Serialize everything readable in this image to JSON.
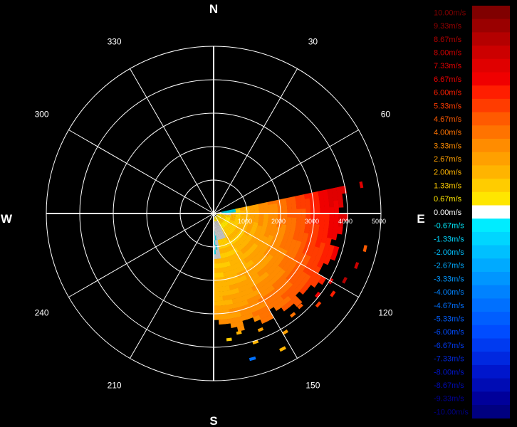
{
  "chart_data": {
    "type": "polar-radar",
    "cardinals": {
      "north": "N",
      "east": "E",
      "south": "S",
      "west": "W"
    },
    "bearing_labels": [
      {
        "deg": 30,
        "text": "30"
      },
      {
        "deg": 60,
        "text": "60"
      },
      {
        "deg": 120,
        "text": "120"
      },
      {
        "deg": 150,
        "text": "150"
      },
      {
        "deg": 210,
        "text": "210"
      },
      {
        "deg": 240,
        "text": "240"
      },
      {
        "deg": 300,
        "text": "300"
      },
      {
        "deg": 330,
        "text": "330"
      }
    ],
    "range_rings": [
      1000,
      2000,
      3000,
      4000,
      5000
    ],
    "range_tick_labels": [
      "1000",
      "2000",
      "3000",
      "4000",
      "5000"
    ],
    "spoke_angles_deg": [
      0,
      30,
      60,
      90,
      120,
      150,
      180,
      210,
      240,
      270,
      300,
      330
    ],
    "velocity_sector": {
      "az_start_deg": 78,
      "az_end_deg": 180,
      "range_start": 100,
      "range_end": 4000,
      "velocity_min": 0.67,
      "velocity_max": 7.33,
      "near_zero_gray_color": "#c0c0c0",
      "negative_patch_color": "#00c8d8"
    },
    "scattered_cells": [
      {
        "az": 79,
        "range": 4450,
        "v": 7.33
      },
      {
        "az": 103,
        "range": 4600,
        "v": 4.67
      },
      {
        "az": 110,
        "range": 4500,
        "v": 8.0
      },
      {
        "az": 117,
        "range": 4350,
        "v": 8.67
      },
      {
        "az": 120,
        "range": 4000,
        "v": 7.33
      },
      {
        "az": 124,
        "range": 4250,
        "v": 6.0
      },
      {
        "az": 128,
        "range": 3900,
        "v": 6.67
      },
      {
        "az": 131,
        "range": 4100,
        "v": 5.33
      },
      {
        "az": 137,
        "range": 3750,
        "v": 4.67
      },
      {
        "az": 142,
        "range": 3800,
        "v": 4.0
      },
      {
        "az": 149,
        "range": 4100,
        "v": 2.67
      },
      {
        "az": 153,
        "range": 4500,
        "v": 2.0
      },
      {
        "az": 158,
        "range": 3700,
        "v": 2.67
      },
      {
        "az": 162,
        "range": 4000,
        "v": 2.0
      },
      {
        "az": 165,
        "range": 4450,
        "v": -4.67
      },
      {
        "az": 168,
        "range": 3600,
        "v": 2.0
      },
      {
        "az": 173,
        "range": 3750,
        "v": 1.33
      }
    ],
    "legend": [
      {
        "label": "10.00m/s",
        "color": "#800000"
      },
      {
        "label": "9.33m/s",
        "color": "#9a0000"
      },
      {
        "label": "8.67m/s",
        "color": "#b40000"
      },
      {
        "label": "8.00m/s",
        "color": "#cc0000"
      },
      {
        "label": "7.33m/s",
        "color": "#e00000"
      },
      {
        "label": "6.67m/s",
        "color": "#f00000"
      },
      {
        "label": "6.00m/s",
        "color": "#ff1e00"
      },
      {
        "label": "5.33m/s",
        "color": "#ff3c00"
      },
      {
        "label": "4.67m/s",
        "color": "#ff5a00"
      },
      {
        "label": "4.00m/s",
        "color": "#ff7300"
      },
      {
        "label": "3.33m/s",
        "color": "#ff8c00"
      },
      {
        "label": "2.67m/s",
        "color": "#ffa000"
      },
      {
        "label": "2.00m/s",
        "color": "#ffb400"
      },
      {
        "label": "1.33m/s",
        "color": "#ffcc00"
      },
      {
        "label": "0.67m/s",
        "color": "#ffe600"
      },
      {
        "label": "0.00m/s",
        "color": "#ffffff"
      },
      {
        "label": "-0.67m/s",
        "color": "#00ecff"
      },
      {
        "label": "-1.33m/s",
        "color": "#00d6ff"
      },
      {
        "label": "-2.00m/s",
        "color": "#00c0ff"
      },
      {
        "label": "-2.67m/s",
        "color": "#00aaff"
      },
      {
        "label": "-3.33m/s",
        "color": "#0096ff"
      },
      {
        "label": "-4.00m/s",
        "color": "#0082ff"
      },
      {
        "label": "-4.67m/s",
        "color": "#0070ff"
      },
      {
        "label": "-5.33m/s",
        "color": "#005eff"
      },
      {
        "label": "-6.00m/s",
        "color": "#004cff"
      },
      {
        "label": "-6.67m/s",
        "color": "#003af0"
      },
      {
        "label": "-7.33m/s",
        "color": "#0028e0"
      },
      {
        "label": "-8.00m/s",
        "color": "#0016cc"
      },
      {
        "label": "-8.67m/s",
        "color": "#000cb4"
      },
      {
        "label": "-9.33m/s",
        "color": "#00009a"
      },
      {
        "label": "-10.00m/s",
        "color": "#000080"
      }
    ]
  }
}
